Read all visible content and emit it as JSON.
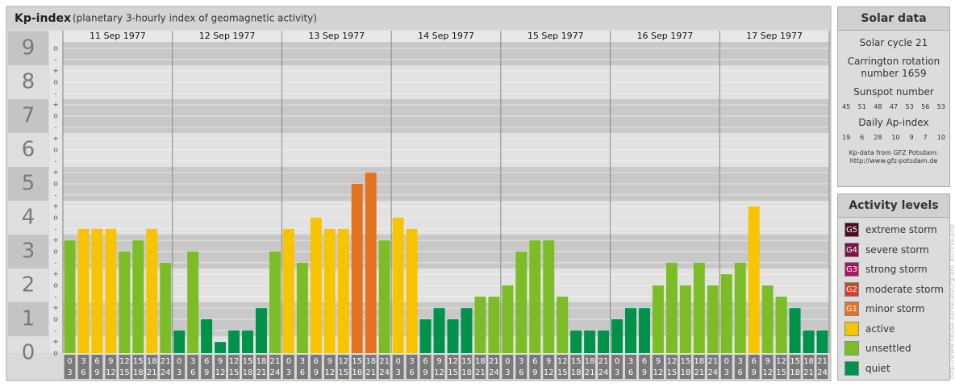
{
  "header": {
    "title": "Kp-index",
    "subtitle": "(planetary 3-hourly index of geomagnetic activity)"
  },
  "chart_data": {
    "type": "bar",
    "ylim": [
      0,
      9
    ],
    "yticks": [
      0,
      1,
      2,
      3,
      4,
      5,
      6,
      7,
      8,
      9
    ],
    "grid": true,
    "minor_yticks": [
      {
        "value": 0,
        "label": "o"
      },
      {
        "value": 0.33,
        "label": "+"
      },
      {
        "value": 0.67,
        "label": "-"
      },
      {
        "value": 1,
        "label": "o"
      },
      {
        "value": 1.33,
        "label": "+"
      },
      {
        "value": 1.67,
        "label": "-"
      },
      {
        "value": 2,
        "label": "o"
      },
      {
        "value": 2.33,
        "label": "+"
      },
      {
        "value": 2.67,
        "label": "-"
      },
      {
        "value": 3,
        "label": "o"
      },
      {
        "value": 3.33,
        "label": "+"
      },
      {
        "value": 3.67,
        "label": "-"
      },
      {
        "value": 4,
        "label": "o"
      },
      {
        "value": 4.33,
        "label": "+"
      },
      {
        "value": 4.67,
        "label": "-"
      },
      {
        "value": 5,
        "label": "o"
      },
      {
        "value": 5.33,
        "label": "+"
      },
      {
        "value": 5.67,
        "label": "-"
      },
      {
        "value": 6,
        "label": "o"
      },
      {
        "value": 6.33,
        "label": "+"
      },
      {
        "value": 6.67,
        "label": "-"
      },
      {
        "value": 7,
        "label": "o"
      },
      {
        "value": 7.33,
        "label": "+"
      },
      {
        "value": 7.67,
        "label": "-"
      },
      {
        "value": 8,
        "label": "o"
      },
      {
        "value": 8.33,
        "label": "+"
      },
      {
        "value": 8.67,
        "label": "-"
      },
      {
        "value": 9,
        "label": "o"
      }
    ],
    "hour_starts": [
      0,
      3,
      6,
      9,
      12,
      15,
      18,
      21
    ],
    "hour_ends": [
      3,
      6,
      9,
      12,
      15,
      18,
      21,
      24
    ],
    "days": [
      {
        "date": "11 Sep 1977",
        "values": [
          3.33,
          3.67,
          3.67,
          3.67,
          3,
          3.33,
          3.67,
          2.67
        ],
        "colors": [
          "#7cbd27",
          "#f6c400",
          "#f6c400",
          "#f6c400",
          "#7cbd27",
          "#7cbd27",
          "#f6c400",
          "#7cbd27"
        ]
      },
      {
        "date": "12 Sep 1977",
        "values": [
          0.67,
          3,
          1,
          0.33,
          0.67,
          0.67,
          1.33,
          3
        ],
        "colors": [
          "#00914a",
          "#7cbd27",
          "#00914a",
          "#00914a",
          "#00914a",
          "#00914a",
          "#00914a",
          "#7cbd27"
        ]
      },
      {
        "date": "13 Sep 1977",
        "values": [
          3.67,
          2.67,
          4,
          3.67,
          3.67,
          5,
          5.33,
          3.33
        ],
        "colors": [
          "#f6c400",
          "#7cbd27",
          "#f6c400",
          "#f6c400",
          "#f6c400",
          "#e57220",
          "#e57220",
          "#7cbd27"
        ]
      },
      {
        "date": "14 Sep 1977",
        "values": [
          4,
          3.67,
          1,
          1.33,
          1,
          1.33,
          1.67,
          1.67
        ],
        "colors": [
          "#f6c400",
          "#f6c400",
          "#00914a",
          "#00914a",
          "#00914a",
          "#00914a",
          "#7cbd27",
          "#7cbd27"
        ]
      },
      {
        "date": "15 Sep 1977",
        "values": [
          2,
          3,
          3.33,
          3.33,
          1.67,
          0.67,
          0.67,
          0.67
        ],
        "colors": [
          "#7cbd27",
          "#7cbd27",
          "#7cbd27",
          "#7cbd27",
          "#7cbd27",
          "#00914a",
          "#00914a",
          "#00914a"
        ]
      },
      {
        "date": "16 Sep 1977",
        "values": [
          1,
          1.33,
          1.33,
          2,
          2.67,
          2,
          2.67,
          2
        ],
        "colors": [
          "#00914a",
          "#00914a",
          "#00914a",
          "#7cbd27",
          "#7cbd27",
          "#7cbd27",
          "#7cbd27",
          "#7cbd27"
        ]
      },
      {
        "date": "17 Sep 1977",
        "values": [
          2.33,
          2.67,
          4.33,
          2,
          1.67,
          1.33,
          0.67,
          0.67
        ],
        "colors": [
          "#7cbd27",
          "#7cbd27",
          "#f6c400",
          "#7cbd27",
          "#7cbd27",
          "#00914a",
          "#00914a",
          "#00914a"
        ]
      }
    ]
  },
  "solar_data": {
    "title": "Solar data",
    "cycle": "Solar cycle 21",
    "rotation": "Carrington rotation number 1659",
    "sunspot_title": "Sunspot number",
    "sunspot_numbers": [
      45,
      51,
      48,
      47,
      53,
      56,
      53
    ],
    "ap_title": "Daily Ap-index",
    "ap_values": [
      19,
      6,
      28,
      10,
      9,
      7,
      10
    ],
    "source": "Kp-data from GFZ Potsdam:",
    "url": "http://www.gfz-potsdam.de"
  },
  "activity_levels": {
    "title": "Activity levels",
    "items": [
      {
        "code": "G5",
        "label": "extreme storm",
        "color": "#4a0a22"
      },
      {
        "code": "G4",
        "label": "severe storm",
        "color": "#7a1446"
      },
      {
        "code": "G3",
        "label": "strong storm",
        "color": "#a8175e"
      },
      {
        "code": "G2",
        "label": "moderate storm",
        "color": "#d2432c"
      },
      {
        "code": "G1",
        "label": "minor storm",
        "color": "#e57220"
      },
      {
        "label": "active",
        "color": "#f6c400"
      },
      {
        "label": "unsettled",
        "color": "#7cbd27"
      },
      {
        "label": "quiet",
        "color": "#00914a"
      }
    ]
  },
  "watermark": "http://www.fleuse-aerkeuelzurgrafo_archive.php"
}
